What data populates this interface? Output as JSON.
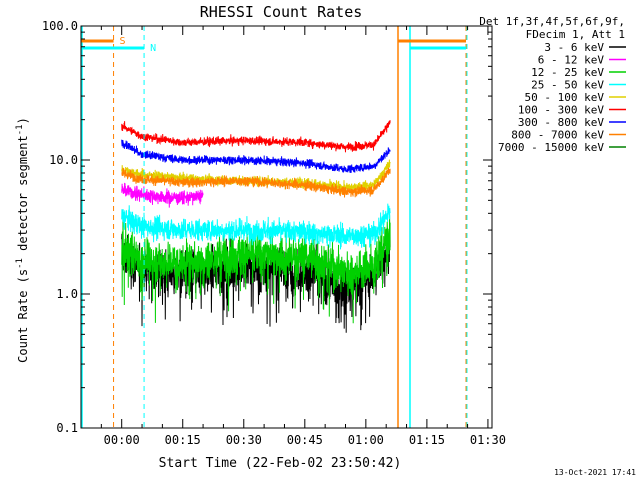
{
  "chart_data": {
    "type": "line",
    "title": "RHESSI Count Rates",
    "xlabel": "Start Time (22-Feb-02 23:50:42)",
    "ylabel_main": "Count Rate (s",
    "ylabel_sup1": "-1",
    "ylabel_mid": " detector segment",
    "ylabel_sup2": "-1",
    "ylabel_end": ")",
    "yscale": "log",
    "ylim": [
      0.1,
      100.0
    ],
    "xlim_minutes": [
      -10.0,
      91.0
    ],
    "xticks": [
      {
        "t": 0,
        "label": "00:00"
      },
      {
        "t": 15,
        "label": "00:15"
      },
      {
        "t": 30,
        "label": "00:30"
      },
      {
        "t": 45,
        "label": "00:45"
      },
      {
        "t": 60,
        "label": "01:00"
      },
      {
        "t": 75,
        "label": "01:15"
      },
      {
        "t": 90,
        "label": "01:30"
      }
    ],
    "yticks": [
      {
        "v": 0.1,
        "label": "0.1"
      },
      {
        "v": 1.0,
        "label": "1.0"
      },
      {
        "v": 10.0,
        "label": "10.0"
      },
      {
        "v": 100.0,
        "label": "100.0"
      }
    ],
    "legend_position": "top-right outside",
    "legend_header": [
      "Det 1f,3f,4f,5f,6f,9f,",
      "FDecim 1, Att 1"
    ],
    "series": [
      {
        "name": "3 - 6 keV",
        "color": "#000000",
        "points": [
          [
            0,
            2.0
          ],
          [
            5,
            1.5
          ],
          [
            15,
            1.4
          ],
          [
            30,
            1.6
          ],
          [
            45,
            1.5
          ],
          [
            55,
            1.1
          ],
          [
            62,
            1.4
          ],
          [
            66,
            2.5
          ]
        ]
      },
      {
        "name": "6 - 12 keV",
        "color": "#ff00ff",
        "points": [
          [
            0,
            6.0
          ],
          [
            5,
            5.5
          ],
          [
            10,
            5.3
          ],
          [
            15,
            5.2
          ],
          [
            20,
            5.4
          ]
        ]
      },
      {
        "name": "12 - 25 keV",
        "color": "#00d000",
        "points": [
          [
            0,
            2.3
          ],
          [
            5,
            1.8
          ],
          [
            15,
            1.7
          ],
          [
            30,
            2.0
          ],
          [
            45,
            1.9
          ],
          [
            55,
            1.5
          ],
          [
            62,
            1.6
          ],
          [
            66,
            2.8
          ]
        ]
      },
      {
        "name": "25 - 50 keV",
        "color": "#00ffff",
        "points": [
          [
            0,
            3.8
          ],
          [
            5,
            3.2
          ],
          [
            15,
            3.0
          ],
          [
            30,
            3.0
          ],
          [
            45,
            2.9
          ],
          [
            55,
            2.7
          ],
          [
            62,
            2.8
          ],
          [
            66,
            4.2
          ]
        ]
      },
      {
        "name": "50 - 100 keV",
        "color": "#e0d000",
        "points": [
          [
            0,
            8.5
          ],
          [
            5,
            7.8
          ],
          [
            15,
            7.3
          ],
          [
            30,
            7.0
          ],
          [
            45,
            6.8
          ],
          [
            55,
            6.2
          ],
          [
            62,
            6.5
          ],
          [
            66,
            9.5
          ]
        ]
      },
      {
        "name": "100 - 300 keV",
        "color": "#ff0000",
        "points": [
          [
            0,
            18.0
          ],
          [
            5,
            15.0
          ],
          [
            15,
            13.5
          ],
          [
            30,
            14.0
          ],
          [
            45,
            13.5
          ],
          [
            55,
            12.5
          ],
          [
            62,
            13.0
          ],
          [
            66,
            19.0
          ]
        ]
      },
      {
        "name": "300 - 800 keV",
        "color": "#0000ff",
        "points": [
          [
            0,
            13.5
          ],
          [
            5,
            11.0
          ],
          [
            15,
            10.0
          ],
          [
            30,
            10.0
          ],
          [
            45,
            9.5
          ],
          [
            55,
            8.5
          ],
          [
            62,
            9.0
          ],
          [
            66,
            12.0
          ]
        ]
      },
      {
        "name": "800 - 7000 keV",
        "color": "#ff8000",
        "points": [
          [
            0,
            8.0
          ],
          [
            5,
            7.2
          ],
          [
            15,
            6.8
          ],
          [
            30,
            7.0
          ],
          [
            45,
            6.5
          ],
          [
            55,
            5.8
          ],
          [
            62,
            6.0
          ],
          [
            66,
            8.5
          ]
        ]
      },
      {
        "name": "7000 - 15000 keV",
        "color": "#008000",
        "points": []
      }
    ],
    "flag_marks": [
      {
        "label": "S",
        "color": "#ff8000",
        "t": -2.0
      },
      {
        "label": "N",
        "color": "#00ffff",
        "t": 5.5
      }
    ],
    "timestamp": "13-Oct-2021 17:41"
  }
}
